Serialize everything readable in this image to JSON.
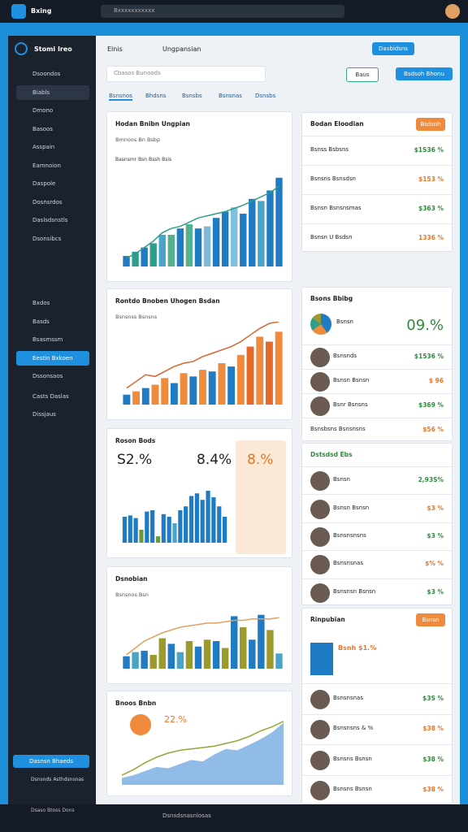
{
  "topbar": {
    "brand": "Bxing",
    "search": "Bxxxxxxxxxxx"
  },
  "sidebar": {
    "brand": "Stomi Ireo",
    "items": [
      "Dsoondos",
      "Biabls",
      "Dmono",
      "Basoos",
      "Asspain",
      "Eamnoion",
      "Daspole",
      "Dosnsrdos",
      "Daslsdsnstls",
      "Dsonsibcs",
      "Bxdos",
      "Basds",
      "Bsasmssm",
      "Eestin Bxkoen",
      "Dssonsaos",
      "Casts Daslas",
      "Dissjaus"
    ],
    "active": 13,
    "button": "Dasnsn Bhaeds",
    "footer": "Dsnsnds Asthdsnsnas",
    "bottom": "Dsaso Btoss Dons"
  },
  "header": {
    "title": "Elnis",
    "subtitle": "Ungpansian",
    "button1": "Dasbidsns",
    "button2": "Baus",
    "button3": "Bsdsoh Bhonu",
    "search": "Cbasos Bunoods",
    "tabs": [
      "Bsnsnos",
      "Bhdsns",
      "Bsnsbs",
      "Bsnsnas",
      "Dsnsbs"
    ],
    "bottom": "Dsnsdsnasnlosas"
  },
  "charts": [
    {
      "type": "bar",
      "title": "Hodan Bnibn Ungpian",
      "subtitle": "Bmnoos Bn Bsbp",
      "legend": "Basnsmr Bsn Bssh Bsis",
      "ylim": [
        0,
        100
      ],
      "values": [
        10,
        14,
        18,
        22,
        30,
        30,
        36,
        40,
        36,
        38,
        46,
        52,
        56,
        50,
        64,
        62,
        72,
        84
      ],
      "colors": [
        "#1f7bc4",
        "#2e9e8c",
        "#1f7bc4",
        "#2e9e8c",
        "#4aa3c8",
        "#55b08c",
        "#1f7bc4",
        "#55b08c",
        "#1f7bc4",
        "#7fb8d8",
        "#1f7bc4",
        "#1f7bc4",
        "#7fc0e0",
        "#1f7bc4",
        "#1f7bc4",
        "#4aa3c8",
        "#1f7bc4",
        "#1f7bc4"
      ],
      "line": {
        "color": "#2e9e8c",
        "values": [
          8,
          12,
          18,
          24,
          32,
          36,
          38,
          42,
          46,
          48,
          50,
          52,
          55,
          58,
          62,
          66,
          70,
          76
        ]
      }
    },
    {
      "type": "bar",
      "title": "Rontdo Bnoben Uhogen Bsdan",
      "subtitle": "Bsnsnss Bsnsns",
      "ylim": [
        0,
        100
      ],
      "values": [
        12,
        16,
        20,
        24,
        32,
        26,
        38,
        34,
        42,
        40,
        50,
        46,
        60,
        70,
        82,
        76,
        88
      ],
      "colors": [
        "#1f7bc4",
        "#f08a3c",
        "#1f7bc4",
        "#f08a3c",
        "#f08a3c",
        "#1f7bc4",
        "#f08a3c",
        "#1f7bc4",
        "#f08a3c",
        "#1f7bc4",
        "#f08a3c",
        "#1f7bc4",
        "#f08a3c",
        "#e8682a",
        "#f08a3c",
        "#e8682a",
        "#f08a3c"
      ],
      "line": {
        "color": "#d8642c",
        "values": [
          20,
          28,
          36,
          34,
          40,
          46,
          50,
          52,
          58,
          62,
          66,
          70,
          76,
          84,
          92,
          98,
          100
        ]
      }
    },
    {
      "type": "bar",
      "title": "Roson Bods",
      "stats": [
        "S2.%",
        "8.4%",
        "8.%"
      ],
      "ylim": [
        0,
        100
      ],
      "values": [
        40,
        42,
        38,
        20,
        48,
        50,
        10,
        44,
        40,
        30,
        50,
        56,
        72,
        76,
        66,
        80,
        70,
        56,
        40
      ],
      "colors": [
        "#1f7bc4",
        "#1f7bc4",
        "#1f7bc4",
        "#6b9a3c",
        "#1f7bc4",
        "#1f7bc4",
        "#6b9a3c",
        "#1f7bc4",
        "#1f7bc4",
        "#4aa3c8",
        "#1f7bc4",
        "#1f7bc4",
        "#1f7bc4",
        "#1f7bc4",
        "#1f7bc4",
        "#1f7bc4",
        "#1f7bc4",
        "#1f7bc4",
        "#1f7bc4"
      ]
    },
    {
      "type": "bar",
      "title": "Dsnobian",
      "subtitle": "Bsnsnos Bsn",
      "ylim": [
        0,
        100
      ],
      "values": [
        18,
        24,
        26,
        20,
        44,
        36,
        24,
        40,
        32,
        42,
        40,
        30,
        76,
        60,
        42,
        78,
        56,
        22
      ],
      "colors": [
        "#1f7bc4",
        "#4aa3c8",
        "#1f7bc4",
        "#9a9a2e",
        "#9a9a2e",
        "#1f7bc4",
        "#4aa3c8",
        "#9a9a2e",
        "#1f7bc4",
        "#9a9a2e",
        "#1f7bc4",
        "#9a9a2e",
        "#1f7bc4",
        "#9a9a2e",
        "#1f7bc4",
        "#1f7bc4",
        "#9a9a2e",
        "#4aa3c8"
      ],
      "line": {
        "color": "#e0a060",
        "values": [
          20,
          30,
          40,
          46,
          52,
          56,
          60,
          62,
          64,
          66,
          66,
          68,
          70,
          70,
          72,
          72,
          72,
          74
        ]
      }
    },
    {
      "type": "area",
      "title": "Bnoos Bnbn",
      "stat": "22.%",
      "ylim": [
        0,
        100
      ],
      "values": [
        10,
        14,
        20,
        26,
        24,
        30,
        36,
        34,
        44,
        52,
        50,
        58,
        66,
        76,
        90
      ],
      "color": "#4a8fd8",
      "line": {
        "color": "#9aa23a",
        "values": [
          14,
          22,
          32,
          40,
          46,
          50,
          52,
          54,
          56,
          60,
          64,
          70,
          78,
          84,
          92
        ]
      }
    }
  ],
  "right": [
    {
      "title": "Bodan Eloodian",
      "button": "Bsdsoh",
      "rows": [
        [
          "Bsnss Bsbsns",
          "$1S36 %"
        ],
        [
          "Bsnsns Bsnsdsn",
          "$153 %"
        ],
        [
          "Bsnsn Bsnsnsmas",
          "$363 %"
        ],
        [
          "Bsnsn U Bsdsn",
          "1336 %"
        ]
      ]
    },
    {
      "title": "Bsons Bbibg",
      "big": "09.%",
      "sub": "Bsnsn",
      "rows": [
        [
          "Bsnsnds",
          "$1536 %"
        ],
        [
          "Bsnsn Bsnsn",
          "$ 96"
        ],
        [
          "Bsnr Bsnsns",
          "$369 %"
        ],
        [
          "Bsnsbsns Bsnsnsns",
          "$56 %"
        ]
      ]
    },
    {
      "title": "Dstsdsd Ebs",
      "rows": [
        [
          "Bsnsn",
          "2,93S%"
        ],
        [
          "Bsnsn Bsnsn",
          "$3 %"
        ],
        [
          "Bsnsnsnsns",
          "$3 %"
        ],
        [
          "Bsnsnsnas",
          "$% %"
        ],
        [
          "Bsnsnsn Bsnsn",
          "$3 %"
        ]
      ]
    },
    {
      "title": "Rinpubian",
      "button": "Bsnsn",
      "feature": "Bsnh $1.%",
      "rows": [
        [
          "Bsnsnsnas",
          "$3S %"
        ],
        [
          "Bsnsnsns & %",
          "$38 %"
        ],
        [
          "Bsnsns Bsnsn",
          "$38 %"
        ],
        [
          "Bsnsns Bsnsn",
          "$38 %"
        ]
      ]
    }
  ]
}
